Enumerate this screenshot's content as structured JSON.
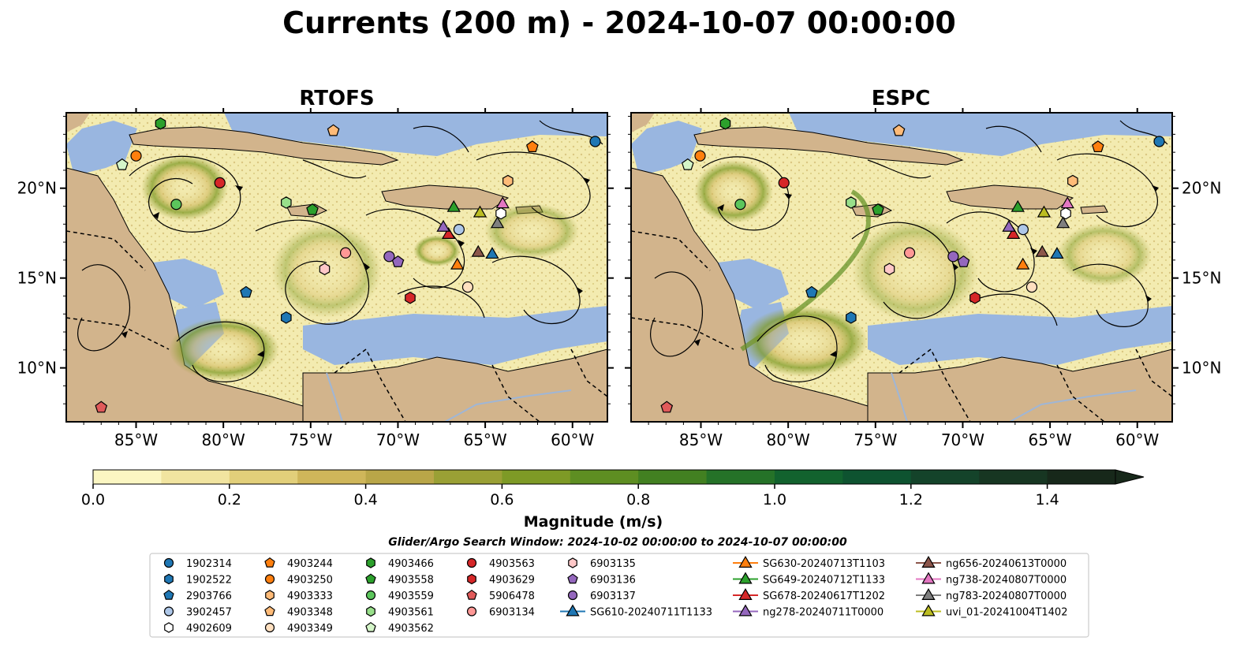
{
  "title": "Currents (200 m) - 2024-10-07 00:00:00",
  "panels": [
    {
      "title": "RTOFS"
    },
    {
      "title": "ESPC"
    }
  ],
  "lon_ticks": [
    "85°W",
    "80°W",
    "75°W",
    "70°W",
    "65°W",
    "60°W"
  ],
  "lat_ticks": [
    "20°N",
    "15°N",
    "10°N"
  ],
  "extent": {
    "lon_min": -89,
    "lon_max": -58,
    "lat_min": 7,
    "lat_max": 24.2
  },
  "colorbar": {
    "label": "Magnitude (m/s)",
    "ticks": [
      "0.0",
      "0.2",
      "0.4",
      "0.6",
      "0.8",
      "1.0",
      "1.2",
      "1.4"
    ],
    "colors": [
      "#fbf6c2",
      "#f1e4a0",
      "#e2cf7a",
      "#cfb65a",
      "#b9a648",
      "#9aa035",
      "#7e9a26",
      "#5e8e22",
      "#428021",
      "#257228",
      "#12622e",
      "#0e5330",
      "#14432a",
      "#173622",
      "#17281a"
    ]
  },
  "subtitle": "Glider/Argo Search Window: 2024-10-02 00:00:00 to 2024-10-07 00:00:00",
  "colors": {
    "ocean": "#f3ebb0",
    "land": "#d2b48c",
    "shelf": "#99b6e0",
    "river": "#9fb6d6"
  },
  "legend": [
    {
      "label": "1902314",
      "marker": "circle",
      "color": "#1f77b4"
    },
    {
      "label": "1902522",
      "marker": "hexagon",
      "color": "#1f77b4"
    },
    {
      "label": "2903766",
      "marker": "pentagon",
      "color": "#1f77b4"
    },
    {
      "label": "3902457",
      "marker": "circle",
      "color": "#aec7e8"
    },
    {
      "label": "4902609",
      "marker": "hexagon",
      "color": "#ffffff"
    },
    {
      "label": "4903244",
      "marker": "pentagon",
      "color": "#ff7f0e"
    },
    {
      "label": "4903250",
      "marker": "circle",
      "color": "#ff7f0e"
    },
    {
      "label": "4903333",
      "marker": "hexagon",
      "color": "#ffbb78"
    },
    {
      "label": "4903348",
      "marker": "pentagon",
      "color": "#ffbb78"
    },
    {
      "label": "4903349",
      "marker": "circle",
      "color": "#ffe0c0"
    },
    {
      "label": "4903466",
      "marker": "hexagon",
      "color": "#2ca02c"
    },
    {
      "label": "4903558",
      "marker": "pentagon",
      "color": "#2ca02c"
    },
    {
      "label": "4903559",
      "marker": "circle",
      "color": "#5cc65c"
    },
    {
      "label": "4903561",
      "marker": "hexagon",
      "color": "#98df8a"
    },
    {
      "label": "4903562",
      "marker": "pentagon",
      "color": "#d4f5c8"
    },
    {
      "label": "4903563",
      "marker": "circle",
      "color": "#d62728"
    },
    {
      "label": "4903629",
      "marker": "hexagon",
      "color": "#d62728"
    },
    {
      "label": "5906478",
      "marker": "pentagon",
      "color": "#e05a5a"
    },
    {
      "label": "6903134",
      "marker": "circle",
      "color": "#ff9896"
    },
    {
      "label": "6903135",
      "marker": "hexagon",
      "color": "#ffc8c8"
    },
    {
      "label": "6903136",
      "marker": "pentagon",
      "color": "#9467bd"
    },
    {
      "label": "6903137",
      "marker": "circle",
      "color": "#9467bd"
    },
    {
      "label": "SG610-20240711T1133",
      "marker": "triangle-line",
      "color": "#1f77b4"
    },
    {
      "label": "SG630-20240713T1103",
      "marker": "triangle-line",
      "color": "#ff7f0e"
    },
    {
      "label": "SG649-20240712T1133",
      "marker": "triangle-line",
      "color": "#2ca02c"
    },
    {
      "label": "SG678-20240617T1202",
      "marker": "triangle-line",
      "color": "#d62728"
    },
    {
      "label": "ng278-20240711T0000",
      "marker": "triangle-line",
      "color": "#9467bd"
    },
    {
      "label": "ng656-20240613T0000",
      "marker": "triangle-line",
      "color": "#8c564b"
    },
    {
      "label": "ng738-20240807T0000",
      "marker": "triangle-line",
      "color": "#e377c2"
    },
    {
      "label": "ng783-20240807T0000",
      "marker": "triangle-line",
      "color": "#7f7f7f"
    },
    {
      "label": "uvi_01-20241004T1402",
      "marker": "triangle-line",
      "color": "#bcbd22"
    }
  ],
  "stations": [
    {
      "id": "1902314",
      "lon": -58.7,
      "lat": 22.6
    },
    {
      "id": "1902522",
      "lon": -76.4,
      "lat": 12.8
    },
    {
      "id": "2903766",
      "lon": -78.7,
      "lat": 14.2
    },
    {
      "id": "3902457",
      "lon": -66.5,
      "lat": 17.7
    },
    {
      "id": "4902609",
      "lon": -64.1,
      "lat": 18.6
    },
    {
      "id": "4903244",
      "lon": -62.3,
      "lat": 22.3
    },
    {
      "id": "4903250",
      "lon": -85.0,
      "lat": 21.8
    },
    {
      "id": "4903333",
      "lon": -63.7,
      "lat": 20.4
    },
    {
      "id": "4903348",
      "lon": -73.7,
      "lat": 23.2
    },
    {
      "id": "4903349",
      "lon": -66.0,
      "lat": 14.5
    },
    {
      "id": "4903466",
      "lon": -83.6,
      "lat": 23.6
    },
    {
      "id": "4903558",
      "lon": -74.9,
      "lat": 18.8
    },
    {
      "id": "4903559",
      "lon": -82.7,
      "lat": 19.1
    },
    {
      "id": "4903561",
      "lon": -76.4,
      "lat": 19.2
    },
    {
      "id": "4903562",
      "lon": -85.8,
      "lat": 21.3
    },
    {
      "id": "4903563",
      "lon": -80.2,
      "lat": 20.3
    },
    {
      "id": "4903629",
      "lon": -69.3,
      "lat": 13.9
    },
    {
      "id": "5906478",
      "lon": -87.0,
      "lat": 7.8
    },
    {
      "id": "6903134",
      "lon": -73.0,
      "lat": 16.4
    },
    {
      "id": "6903135",
      "lon": -74.2,
      "lat": 15.5
    },
    {
      "id": "6903136",
      "lon": -70.0,
      "lat": 15.9
    },
    {
      "id": "6903137",
      "lon": -70.5,
      "lat": 16.2
    },
    {
      "id": "SG610-20240711T1133",
      "lon": -64.6,
      "lat": 16.3
    },
    {
      "id": "SG630-20240713T1103",
      "lon": -66.6,
      "lat": 15.7
    },
    {
      "id": "SG649-20240712T1133",
      "lon": -66.8,
      "lat": 18.9
    },
    {
      "id": "SG678-20240617T1202",
      "lon": -67.1,
      "lat": 17.4
    },
    {
      "id": "ng278-20240711T0000",
      "lon": -67.4,
      "lat": 17.8
    },
    {
      "id": "ng656-20240613T0000",
      "lon": -65.4,
      "lat": 16.4
    },
    {
      "id": "ng738-20240807T0000",
      "lon": -64.0,
      "lat": 19.1
    },
    {
      "id": "ng783-20240807T0000",
      "lon": -64.3,
      "lat": 18.0
    },
    {
      "id": "uvi_01-20241004T1402",
      "lon": -65.3,
      "lat": 18.6
    }
  ]
}
